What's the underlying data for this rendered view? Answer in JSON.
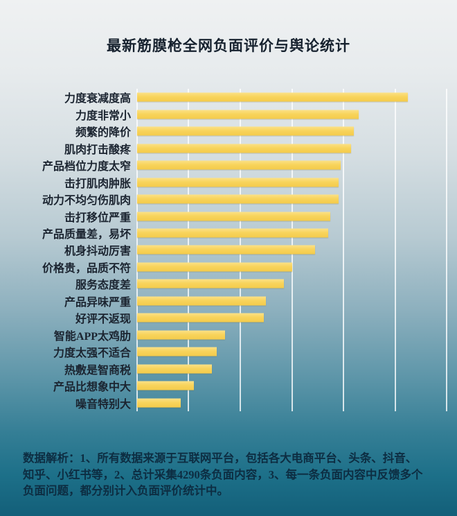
{
  "title": "最新筋膜枪全网负面评价与舆论统计",
  "chart_data": {
    "type": "bar",
    "orientation": "horizontal",
    "title": "最新筋膜枪全网负面评价与舆论统计",
    "categories": [
      "力度衰减度高",
      "力度非常小",
      "频繁的降价",
      "肌肉打击酸疼",
      "产品档位力度太窄",
      "击打肌肉肿胀",
      "动力不均匀伤肌肉",
      "击打移位严重",
      "产品质量差，易坏",
      "机身抖动厉害",
      "价格贵，品质不符",
      "服务态度差",
      "产品异味严重",
      "好评不返现",
      "智能APP太鸡肋",
      "力度太强不适合",
      "热敷是智商税",
      "产品比想象中大",
      "噪音特别大"
    ],
    "values": [
      525,
      430,
      420,
      415,
      395,
      390,
      390,
      375,
      370,
      345,
      300,
      285,
      250,
      245,
      170,
      155,
      145,
      110,
      85
    ],
    "xlabel": "",
    "ylabel": "",
    "xlim": [
      0,
      600
    ],
    "gridline_interval": 100,
    "gridline_count": 7,
    "axis_tick_labels_visible": false,
    "grid": "vertical-white-lines",
    "legend": "none",
    "bar_color": "#f8d45c",
    "background": "gradient #eff1f2 (top) to #135f79 (bottom)"
  },
  "footer": {
    "lines": [
      "数据解析：1、所有数据来源于互联网平台，包括各大电商平台、头条、抖音、",
      "知乎、小红书等，2、总计采集4290条负面内容，3、每一条负面内容中反馈多个",
      "负面问题，都分别计入负面评价统计中。"
    ]
  },
  "colors": {
    "bar": "#f8d45c",
    "title_text": "#17222f",
    "label_text": "#1b2430",
    "footer_text": "#0d2d42",
    "gridline": "rgba(255,255,255,0.78)",
    "background_top": "#eff1f2",
    "background_bottom": "#135f79"
  }
}
